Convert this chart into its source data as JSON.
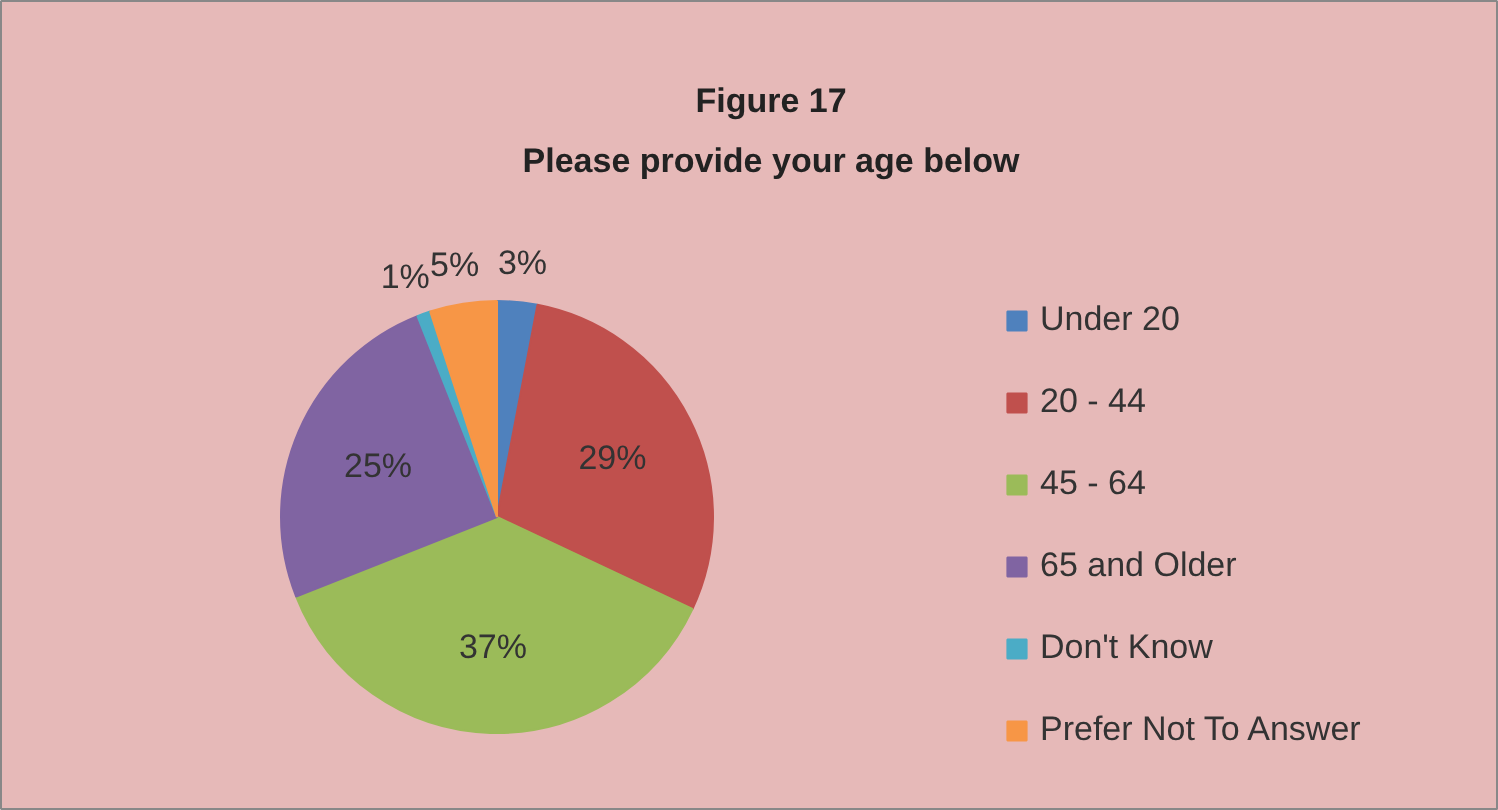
{
  "chart_data": {
    "type": "pie",
    "title": "Figure 17",
    "subtitle": "Please provide your age below",
    "categories": [
      "Under 20",
      "20 - 44",
      "45 - 64",
      "65 and Older",
      "Don't Know",
      "Prefer Not To Answer"
    ],
    "values": [
      3,
      29,
      37,
      25,
      1,
      5
    ],
    "colors": [
      "#4f81bd",
      "#c0504d",
      "#9bbb59",
      "#8064a2",
      "#4bacc6",
      "#f79646"
    ],
    "value_labels": [
      "3%",
      "29%",
      "37%",
      "25%",
      "1%",
      "5%"
    ],
    "legend": "right"
  }
}
